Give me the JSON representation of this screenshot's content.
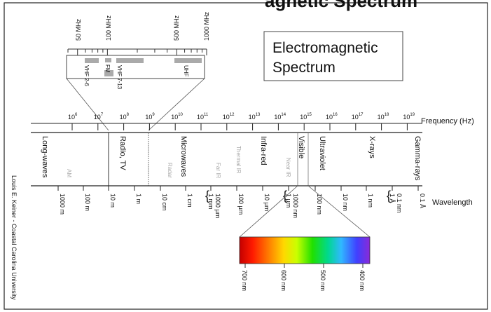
{
  "title_partial": "agnetic Spectrum",
  "title_box": {
    "line1": "Electromagnetic",
    "line2": "Spectrum"
  },
  "credit": "Louis E. Keiner - Coastal Carolina University",
  "frequency": {
    "axis_label": "Frequency (Hz)",
    "ticks": [
      {
        "base": "10",
        "exp": "6"
      },
      {
        "base": "10",
        "exp": "7"
      },
      {
        "base": "10",
        "exp": "8"
      },
      {
        "base": "10",
        "exp": "9"
      },
      {
        "base": "10",
        "exp": "10"
      },
      {
        "base": "10",
        "exp": "11"
      },
      {
        "base": "10",
        "exp": "12"
      },
      {
        "base": "10",
        "exp": "13"
      },
      {
        "base": "10",
        "exp": "14"
      },
      {
        "base": "10",
        "exp": "15"
      },
      {
        "base": "10",
        "exp": "16"
      },
      {
        "base": "10",
        "exp": "17"
      },
      {
        "base": "10",
        "exp": "18"
      },
      {
        "base": "10",
        "exp": "19"
      }
    ]
  },
  "bands": [
    "Long-waves",
    "Radio, TV",
    "Microwaves",
    "Infra-red",
    "Visible",
    "Ultraviolet",
    "X-rays",
    "Gamma-rays"
  ],
  "sub_bands": [
    "AM",
    "Radar",
    "Far IR",
    "Thermal IR",
    "Near IR"
  ],
  "wavelength": {
    "axis_label": "Wavelength",
    "ticks": [
      "1000 m",
      "100 m",
      "10 m",
      "1 m",
      "10 cm",
      "1 cm",
      "1 mm",
      "1000 µm",
      "100 µm",
      "10 µm",
      "1 µm",
      "1000 nm",
      "100 nm",
      "10 nm",
      "1 nm",
      "1 Å",
      "0.1 nm",
      "0.1 Å"
    ]
  },
  "radio_inset": {
    "freq_labels": [
      "50 MHz",
      "100 MHz",
      "500 MHz",
      "1000 MHz"
    ],
    "bands": [
      "VHF 2-6",
      "FM",
      "VHF 7-13",
      "UHF"
    ]
  },
  "visible_inset": {
    "wavelength_labels": [
      "700 nm",
      "600 nm",
      "500 nm",
      "400 nm"
    ]
  }
}
